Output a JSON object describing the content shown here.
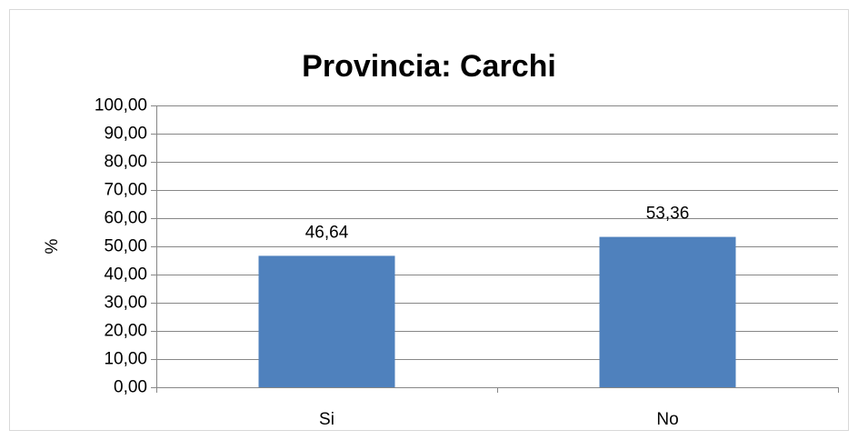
{
  "chart_data": {
    "type": "bar",
    "title": "Provincia: Carchi",
    "y_label": "%",
    "categories": [
      "Si",
      "No"
    ],
    "values": [
      46.64,
      53.36
    ],
    "value_labels": [
      "46,64",
      "53,36"
    ],
    "color": "#4f81bd",
    "ylim": [
      0,
      100
    ],
    "yticks": [
      {
        "value": 0,
        "label": "0,00"
      },
      {
        "value": 10,
        "label": "10,00"
      },
      {
        "value": 20,
        "label": "20,00"
      },
      {
        "value": 30,
        "label": "30,00"
      },
      {
        "value": 40,
        "label": "40,00"
      },
      {
        "value": 50,
        "label": "50,00"
      },
      {
        "value": 60,
        "label": "60,00"
      },
      {
        "value": 70,
        "label": "70,00"
      },
      {
        "value": 80,
        "label": "80,00"
      },
      {
        "value": 90,
        "label": "90,00"
      },
      {
        "value": 100,
        "label": "100,00"
      }
    ],
    "grid": true
  }
}
